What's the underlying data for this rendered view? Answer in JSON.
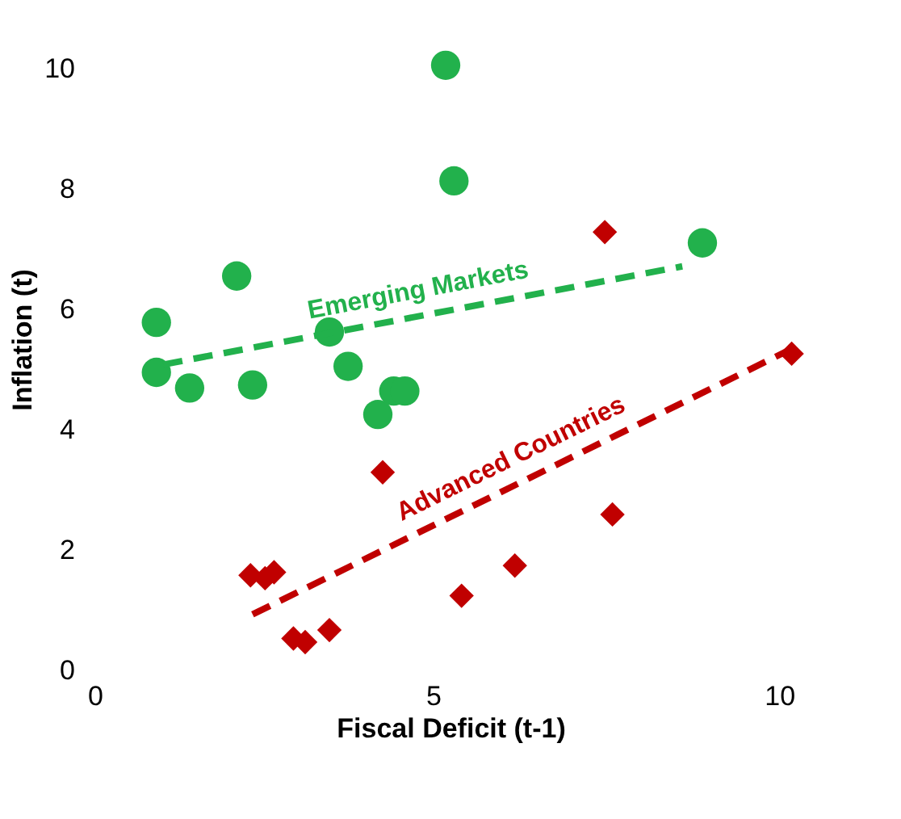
{
  "chart_data": {
    "type": "scatter",
    "xlabel": "Fiscal Deficit (t-1)",
    "ylabel": "Inflation (t)",
    "xlim": [
      0,
      10.5
    ],
    "ylim": [
      0,
      11
    ],
    "xticks": [
      0,
      5,
      10
    ],
    "yticks": [
      0,
      2,
      4,
      6,
      8,
      10
    ],
    "grid": false,
    "series": [
      {
        "color": "#22b14c",
        "marker": "circle",
        "x": [
          1.0,
          1.0,
          1.48,
          2.16,
          2.39,
          3.5,
          3.77,
          4.2,
          4.43,
          4.59,
          5.18,
          5.3,
          8.89
        ],
        "values": [
          5.78,
          4.95,
          4.69,
          6.55,
          4.74,
          5.62,
          5.05,
          4.25,
          4.64,
          4.64,
          10.05,
          8.13,
          7.1
        ]
      },
      {
        "color": "#c00000",
        "marker": "diamond",
        "x": [
          4.27,
          7.48,
          10.18,
          2.36,
          2.57,
          2.7,
          2.98,
          3.15,
          3.5,
          5.41,
          6.18,
          7.59
        ],
        "values": [
          3.29,
          7.28,
          5.26,
          1.58,
          1.53,
          1.63,
          0.53,
          0.47,
          0.67,
          1.24,
          1.74,
          2.59
        ]
      },
      {
        "type": "line",
        "name": "Emerging Markets",
        "color": "#22b14c",
        "line_style": "dashed",
        "x": [
          1.1,
          8.6
        ],
        "values": [
          5.08,
          6.71
        ]
      },
      {
        "type": "line",
        "name": "Advanced Countries",
        "color": "#c00000",
        "line_style": "dashed",
        "x": [
          2.39,
          10.18
        ],
        "values": [
          0.93,
          5.34
        ]
      }
    ]
  }
}
